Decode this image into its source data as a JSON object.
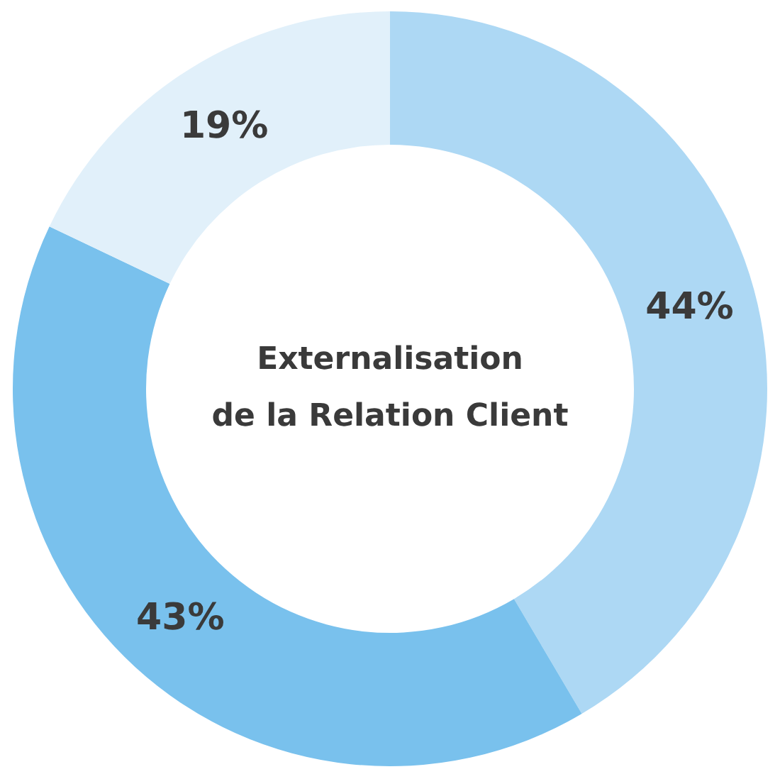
{
  "chart_data": {
    "type": "donut",
    "title": "Externalisation\nde la Relation Client",
    "categories": [
      null,
      null,
      null
    ],
    "values": [
      44,
      43,
      19
    ],
    "colors": [
      "#add8f4",
      "#79c1ed",
      "#e1f0fa"
    ],
    "value_labels": [
      "44%",
      "43%",
      "19%"
    ],
    "legend": false
  }
}
